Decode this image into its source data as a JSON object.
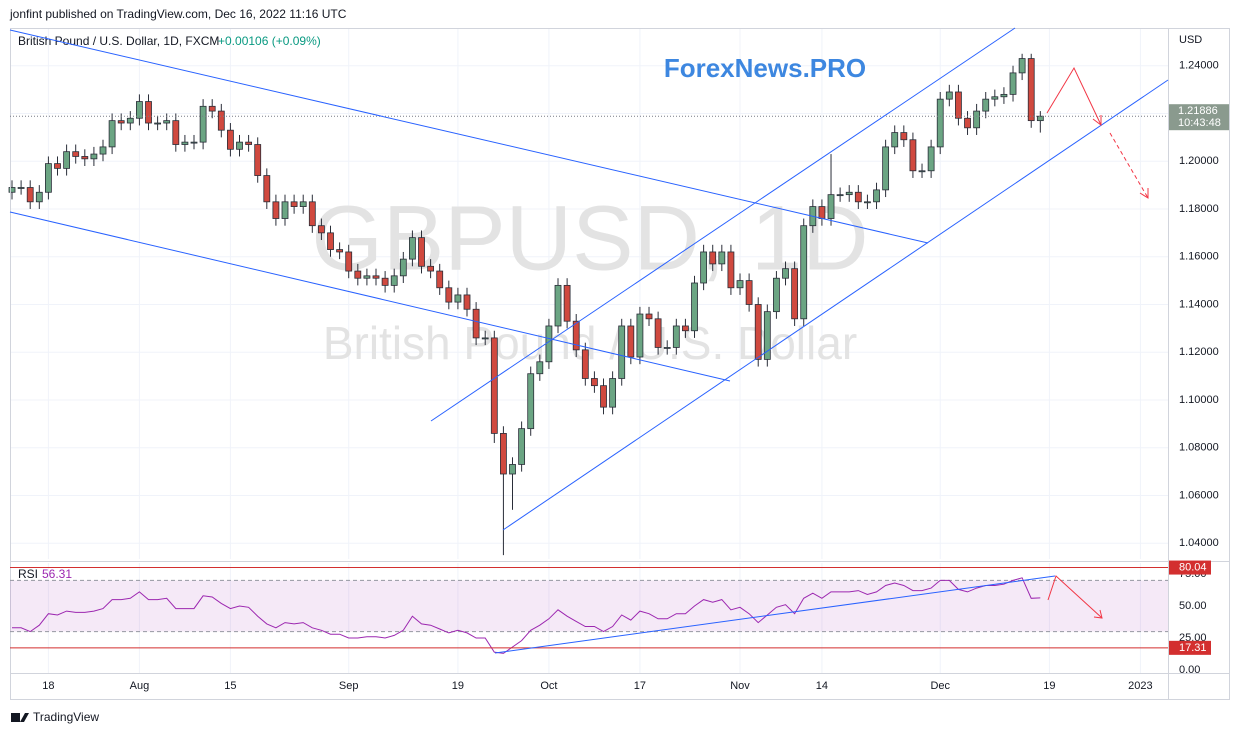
{
  "header": "jonfint published on TradingView.com, Dec 16, 2022 11:16 UTC",
  "footer": "TradingView",
  "chart_data": [
    {
      "type": "candlestick",
      "legend": "British Pound / U.S. Dollar, 1D, FXCM",
      "change": "+0.00106 (+0.09%)",
      "watermark": [
        "GBPUSD, 1D",
        "British Pound / U.S. Dollar"
      ],
      "annotation": "ForexNews.PRO",
      "axis_label": "USD",
      "countdown": "10:43:48",
      "up_color": "#6ba583",
      "down_color": "#d0493f",
      "open": [
        1.187,
        1.189,
        1.189,
        1.183,
        1.187,
        1.199,
        1.197,
        1.204,
        1.202,
        1.201,
        1.203,
        1.206,
        1.217,
        1.216,
        1.218,
        1.225,
        1.216,
        1.216,
        1.217,
        1.207,
        1.208,
        1.208,
        1.223,
        1.221,
        1.213,
        1.205,
        1.208,
        1.207,
        1.194,
        1.183,
        1.176,
        1.183,
        1.181,
        1.183,
        1.173,
        1.17,
        1.163,
        1.162,
        1.154,
        1.151,
        1.152,
        1.151,
        1.148,
        1.152,
        1.159,
        1.168,
        1.156,
        1.154,
        1.147,
        1.141,
        1.144,
        1.138,
        1.126,
        1.126,
        1.086,
        1.069,
        1.073,
        1.088,
        1.111,
        1.116,
        1.131,
        1.148,
        1.133,
        1.121,
        1.109,
        1.106,
        1.097,
        1.109,
        1.131,
        1.118,
        1.136,
        1.134,
        1.122,
        1.122,
        1.131,
        1.129,
        1.149,
        1.162,
        1.157,
        1.162,
        1.147,
        1.15,
        1.14,
        1.117,
        1.137,
        1.151,
        1.155,
        1.134,
        1.173,
        1.181,
        1.176,
        1.186,
        1.186,
        1.187,
        1.183,
        1.183,
        1.188,
        1.206,
        1.212,
        1.209,
        1.196,
        1.196,
        1.206,
        1.226,
        1.229,
        1.218,
        1.214,
        1.221,
        1.226,
        1.227,
        1.228,
        1.237,
        1.243,
        1.217
      ],
      "high": [
        1.192,
        1.192,
        1.192,
        1.19,
        1.202,
        1.202,
        1.207,
        1.207,
        1.205,
        1.206,
        1.209,
        1.22,
        1.22,
        1.221,
        1.228,
        1.228,
        1.219,
        1.22,
        1.22,
        1.211,
        1.211,
        1.226,
        1.226,
        1.224,
        1.216,
        1.211,
        1.211,
        1.21,
        1.197,
        1.186,
        1.186,
        1.186,
        1.186,
        1.186,
        1.176,
        1.173,
        1.166,
        1.165,
        1.157,
        1.155,
        1.155,
        1.154,
        1.155,
        1.162,
        1.171,
        1.171,
        1.159,
        1.157,
        1.15,
        1.147,
        1.147,
        1.141,
        1.129,
        1.129,
        1.089,
        1.076,
        1.091,
        1.114,
        1.119,
        1.134,
        1.151,
        1.151,
        1.136,
        1.124,
        1.112,
        1.109,
        1.112,
        1.134,
        1.134,
        1.139,
        1.139,
        1.137,
        1.125,
        1.134,
        1.134,
        1.152,
        1.165,
        1.165,
        1.165,
        1.165,
        1.153,
        1.153,
        1.143,
        1.14,
        1.154,
        1.158,
        1.158,
        1.176,
        1.184,
        1.184,
        1.203,
        1.189,
        1.19,
        1.19,
        1.186,
        1.191,
        1.209,
        1.215,
        1.215,
        1.212,
        1.199,
        1.209,
        1.229,
        1.232,
        1.232,
        1.221,
        1.224,
        1.229,
        1.23,
        1.231,
        1.24,
        1.245,
        1.245,
        1.221
      ],
      "low": [
        1.184,
        1.186,
        1.18,
        1.18,
        1.184,
        1.194,
        1.194,
        1.199,
        1.198,
        1.198,
        1.2,
        1.203,
        1.213,
        1.213,
        1.215,
        1.213,
        1.213,
        1.213,
        1.204,
        1.204,
        1.205,
        1.205,
        1.218,
        1.21,
        1.202,
        1.202,
        1.204,
        1.191,
        1.18,
        1.173,
        1.173,
        1.178,
        1.178,
        1.17,
        1.167,
        1.16,
        1.159,
        1.151,
        1.148,
        1.148,
        1.148,
        1.145,
        1.145,
        1.149,
        1.156,
        1.153,
        1.151,
        1.144,
        1.138,
        1.138,
        1.135,
        1.123,
        1.123,
        1.082,
        1.035,
        1.054,
        1.07,
        1.085,
        1.108,
        1.113,
        1.128,
        1.13,
        1.118,
        1.106,
        1.103,
        1.094,
        1.094,
        1.106,
        1.115,
        1.115,
        1.131,
        1.119,
        1.119,
        1.119,
        1.126,
        1.126,
        1.146,
        1.154,
        1.154,
        1.144,
        1.144,
        1.137,
        1.114,
        1.114,
        1.134,
        1.148,
        1.131,
        1.131,
        1.17,
        1.173,
        1.173,
        1.183,
        1.183,
        1.18,
        1.18,
        1.18,
        1.185,
        1.203,
        1.206,
        1.193,
        1.193,
        1.193,
        1.203,
        1.223,
        1.215,
        1.211,
        1.211,
        1.218,
        1.223,
        1.224,
        1.225,
        1.234,
        1.214,
        1.212
      ],
      "close": [
        1.189,
        1.189,
        1.183,
        1.187,
        1.199,
        1.197,
        1.204,
        1.202,
        1.201,
        1.203,
        1.206,
        1.217,
        1.216,
        1.218,
        1.225,
        1.216,
        1.216,
        1.217,
        1.207,
        1.208,
        1.208,
        1.223,
        1.221,
        1.213,
        1.205,
        1.208,
        1.207,
        1.194,
        1.183,
        1.176,
        1.183,
        1.181,
        1.183,
        1.173,
        1.17,
        1.163,
        1.162,
        1.154,
        1.151,
        1.152,
        1.151,
        1.148,
        1.152,
        1.159,
        1.168,
        1.156,
        1.154,
        1.147,
        1.141,
        1.144,
        1.138,
        1.126,
        1.126,
        1.086,
        1.069,
        1.073,
        1.088,
        1.111,
        1.116,
        1.131,
        1.148,
        1.133,
        1.121,
        1.109,
        1.106,
        1.097,
        1.109,
        1.131,
        1.118,
        1.136,
        1.134,
        1.122,
        1.122,
        1.131,
        1.129,
        1.149,
        1.162,
        1.157,
        1.162,
        1.147,
        1.15,
        1.14,
        1.117,
        1.137,
        1.151,
        1.155,
        1.134,
        1.173,
        1.181,
        1.176,
        1.186,
        1.186,
        1.187,
        1.183,
        1.183,
        1.188,
        1.206,
        1.212,
        1.209,
        1.196,
        1.196,
        1.206,
        1.226,
        1.229,
        1.218,
        1.214,
        1.221,
        1.226,
        1.227,
        1.228,
        1.237,
        1.243,
        1.217,
        1.21886
      ],
      "xlim": [
        -0.22,
        127.03
      ],
      "xticks": [
        {
          "value": 4,
          "label": "18"
        },
        {
          "value": 14,
          "label": "Aug"
        },
        {
          "value": 24,
          "label": "15"
        },
        {
          "value": 37,
          "label": "Sep"
        },
        {
          "value": 49,
          "label": "19"
        },
        {
          "value": 59,
          "label": "Oct"
        },
        {
          "value": 69,
          "label": "17"
        },
        {
          "value": 80,
          "label": "Nov"
        },
        {
          "value": 89,
          "label": "14"
        },
        {
          "value": 102,
          "label": "Dec"
        },
        {
          "value": 114,
          "label": "19"
        },
        {
          "value": 124,
          "label": "2023"
        }
      ],
      "ylim": [
        1.0334,
        1.2558
      ],
      "yticks": [
        {
          "value": 1.04,
          "label": "1.04000"
        },
        {
          "value": 1.06,
          "label": "1.06000"
        },
        {
          "value": 1.08,
          "label": "1.08000"
        },
        {
          "value": 1.1,
          "label": "1.10000"
        },
        {
          "value": 1.12,
          "label": "1.12000"
        },
        {
          "value": 1.14,
          "label": "1.14000"
        },
        {
          "value": 1.16,
          "label": "1.16000"
        },
        {
          "value": 1.18,
          "label": "1.18000"
        },
        {
          "value": 1.2,
          "label": "1.20000"
        },
        {
          "value": 1.22,
          "label": "1.22000"
        },
        {
          "value": 1.24,
          "label": "1.24000"
        }
      ],
      "grid": true
    },
    {
      "type": "line",
      "name": "RSI",
      "color": "#9c27b0",
      "values": [
        33,
        33,
        30,
        35,
        44,
        43,
        46,
        45,
        45,
        46,
        48,
        55,
        55,
        56,
        61,
        55,
        55,
        56,
        48,
        48,
        48,
        58,
        57,
        52,
        48,
        50,
        49,
        42,
        36,
        33,
        37,
        36,
        37,
        33,
        31,
        28,
        28,
        25,
        25,
        26,
        26,
        25,
        27,
        31,
        42,
        36,
        35,
        32,
        29,
        31,
        29,
        25,
        25,
        14,
        13,
        18,
        23,
        31,
        35,
        40,
        47,
        42,
        38,
        34,
        34,
        30,
        34,
        43,
        39,
        46,
        44,
        40,
        40,
        44,
        44,
        50,
        55,
        53,
        55,
        47,
        49,
        44,
        37,
        43,
        49,
        51,
        44,
        56,
        60,
        56,
        61,
        61,
        61,
        62,
        59,
        61,
        66,
        68,
        66,
        62,
        62,
        64,
        70,
        70,
        63,
        61,
        64,
        66,
        66,
        67,
        70,
        72,
        56,
        56.31
      ],
      "band": [
        30,
        70
      ],
      "hlines": [
        80.04,
        17.31
      ],
      "hline_color": "#d32f2f",
      "ylim": [
        0,
        83.6
      ],
      "yticks": [
        {
          "value": 0,
          "label": "0.00"
        },
        {
          "value": 25,
          "label": "25.00"
        },
        {
          "value": 50,
          "label": "50.00"
        },
        {
          "value": 75,
          "label": "75.00"
        }
      ]
    }
  ]
}
